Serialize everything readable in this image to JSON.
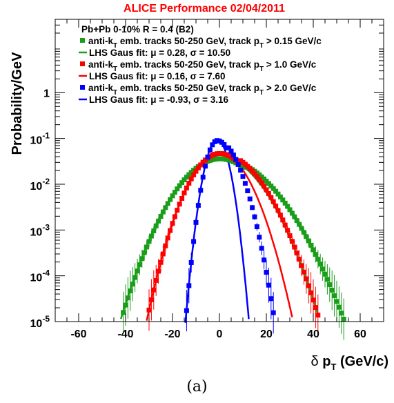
{
  "chart_data": {
    "type": "scatter",
    "title": "ALICE Performance 02/04/2011",
    "title_color": "#ff0000",
    "ylabel": "Probability/GeV",
    "xlabel": "δ p_T (GeV/c)",
    "xlim": [
      -70,
      70
    ],
    "ylim": [
      1e-05,
      40
    ],
    "y_scale": "log",
    "grid": false,
    "legend_placement": "top-left",
    "legend_header": "Pb+Pb  0-10% R = 0.4 (B2)",
    "x_ticks": [
      -60,
      -40,
      -20,
      0,
      20,
      40,
      60
    ],
    "x_tick_labels": [
      "-60",
      "-40",
      "-20",
      "0",
      "20",
      "40",
      "60"
    ],
    "y_ticks": [
      1e-05,
      0.0001,
      0.001,
      0.01,
      0.1,
      1
    ],
    "y_tick_labels": [
      {
        "base": "10",
        "exp": "-5"
      },
      {
        "base": "10",
        "exp": "-4"
      },
      {
        "base": "10",
        "exp": "-3"
      },
      {
        "base": "10",
        "exp": "-2"
      },
      {
        "base": "10",
        "exp": "-1"
      },
      {
        "base": "1",
        "exp": ""
      }
    ],
    "series": [
      {
        "name": "anti-kT emb. tracks 50-250 GeV, track pT > 0.15 GeV/c",
        "legend": {
          "pre": "anti-k",
          "sub": "T",
          "mid": " emb. tracks 50-250 GeV, track p",
          "sub2": "T",
          "post": " > 0.15 GeV/c"
        },
        "color": "#1a9e1a",
        "amplitude": 0.036,
        "spread": 10.5,
        "center": 0.28,
        "tail": 10.5,
        "x_range": [
          -48,
          65
        ]
      },
      {
        "name": "anti-kT emb. tracks 50-250 GeV, track pT > 1.0 GeV/c",
        "legend": {
          "pre": "anti-k",
          "sub": "T",
          "mid": " emb. tracks 50-250 GeV, track p",
          "sub2": "T",
          "post": " > 1.0 GeV/c"
        },
        "color": "#ff0000",
        "amplitude": 0.047,
        "spread": 7.6,
        "center": 0.16,
        "tail": 8.3,
        "x_range": [
          -30,
          62
        ]
      },
      {
        "name": "anti-kT emb. tracks 50-250 GeV, track pT > 2.0 GeV/c",
        "legend": {
          "pre": "anti-k",
          "sub": "T",
          "mid": " emb. tracks 50-250 GeV, track p",
          "sub2": "T",
          "post": " > 2.0 GeV/c"
        },
        "color": "#0000ff",
        "amplitude": 0.09,
        "spread": 3.16,
        "center": -0.93,
        "tail": 4.6,
        "x_range": [
          -14,
          45
        ]
      }
    ],
    "fits": [
      {
        "name": "LHS Gaus fit: μ = 0.28, σ = 10.50",
        "color": "#1a9e1a",
        "amplitude": 0.038,
        "mu": 0.28,
        "sigma": 10.5,
        "x_range": [
          -42,
          42
        ]
      },
      {
        "name": "LHS Gaus fit: μ = 0.16, σ = 7.60",
        "color": "#ff0000",
        "amplitude": 0.047,
        "mu": 0.16,
        "sigma": 7.6,
        "x_range": [
          -31,
          31
        ]
      },
      {
        "name": "LHS Gaus fit: μ = -0.93, σ = 3.16",
        "color": "#0000ff",
        "amplitude": 0.095,
        "mu": -0.93,
        "sigma": 3.16,
        "x_range": [
          -16,
          14
        ]
      }
    ]
  },
  "caption": "(a)"
}
